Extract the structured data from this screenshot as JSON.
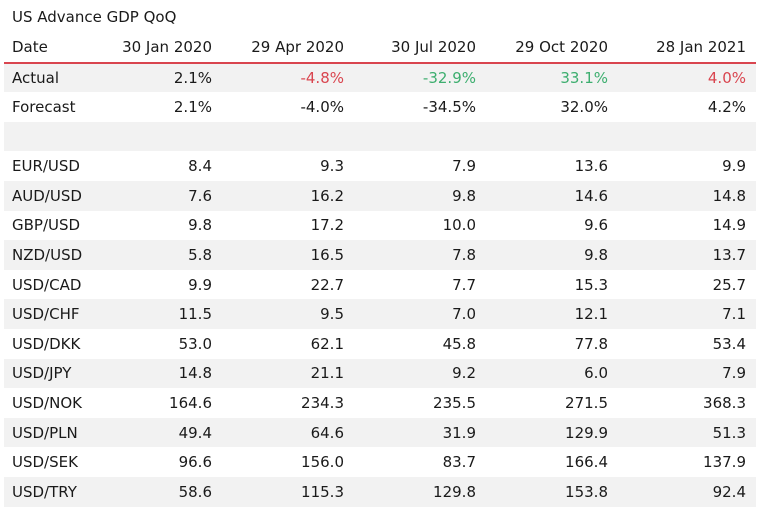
{
  "title": "US Advance GDP QoQ",
  "colors": {
    "header_rule": "#d9454f",
    "negative": "#d9454f",
    "positive": "#3dae6f",
    "stripe": "#f2f2f2"
  },
  "header": {
    "label": "Date",
    "dates": [
      "30 Jan 2020",
      "29 Apr 2020",
      "30 Jul 2020",
      "29 Oct 2020",
      "28 Jan 2021"
    ]
  },
  "actual": {
    "label": "Actual",
    "values": [
      "2.1%",
      "-4.8%",
      "-32.9%",
      "33.1%",
      "4.0%"
    ]
  },
  "forecast": {
    "label": "Forecast",
    "values": [
      "2.1%",
      "-4.0%",
      "-34.5%",
      "32.0%",
      "4.2%"
    ]
  },
  "pairs": [
    {
      "label": "EUR/USD",
      "values": [
        "8.4",
        "9.3",
        "7.9",
        "13.6",
        "9.9"
      ]
    },
    {
      "label": "AUD/USD",
      "values": [
        "7.6",
        "16.2",
        "9.8",
        "14.6",
        "14.8"
      ]
    },
    {
      "label": "GBP/USD",
      "values": [
        "9.8",
        "17.2",
        "10.0",
        "9.6",
        "14.9"
      ]
    },
    {
      "label": "NZD/USD",
      "values": [
        "5.8",
        "16.5",
        "7.8",
        "9.8",
        "13.7"
      ]
    },
    {
      "label": "USD/CAD",
      "values": [
        "9.9",
        "22.7",
        "7.7",
        "15.3",
        "25.7"
      ]
    },
    {
      "label": "USD/CHF",
      "values": [
        "11.5",
        "9.5",
        "7.0",
        "12.1",
        "7.1"
      ]
    },
    {
      "label": "USD/DKK",
      "values": [
        "53.0",
        "62.1",
        "45.8",
        "77.8",
        "53.4"
      ]
    },
    {
      "label": "USD/JPY",
      "values": [
        "14.8",
        "21.1",
        "9.2",
        "6.0",
        "7.9"
      ]
    },
    {
      "label": "USD/NOK",
      "values": [
        "164.6",
        "234.3",
        "235.5",
        "271.5",
        "368.3"
      ]
    },
    {
      "label": "USD/PLN",
      "values": [
        "49.4",
        "64.6",
        "31.9",
        "129.9",
        "51.3"
      ]
    },
    {
      "label": "USD/SEK",
      "values": [
        "96.6",
        "156.0",
        "83.7",
        "166.4",
        "137.9"
      ]
    },
    {
      "label": "USD/TRY",
      "values": [
        "58.6",
        "115.3",
        "129.8",
        "153.8",
        "92.4"
      ]
    }
  ]
}
